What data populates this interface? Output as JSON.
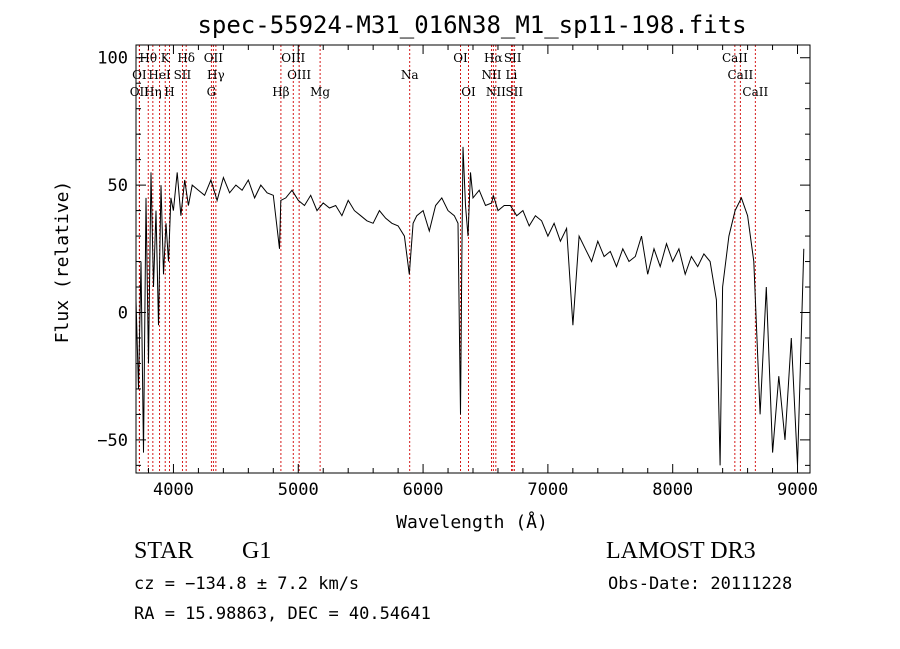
{
  "chart_data": {
    "type": "line",
    "title": "spec-55924-M31_016N38_M1_sp11-198.fits",
    "xlabel": "Wavelength (Å)",
    "ylabel": "Flux (relative)",
    "xlim": [
      3700,
      9100
    ],
    "ylim": [
      -63,
      105
    ],
    "xticks": [
      4000,
      5000,
      6000,
      7000,
      8000,
      9000
    ],
    "yticks": [
      -50,
      0,
      50,
      100
    ],
    "series": [
      {
        "name": "spectrum",
        "x": [
          3700,
          3720,
          3740,
          3760,
          3780,
          3800,
          3820,
          3840,
          3860,
          3880,
          3900,
          3920,
          3940,
          3960,
          3980,
          4000,
          4030,
          4060,
          4090,
          4120,
          4150,
          4200,
          4250,
          4300,
          4350,
          4400,
          4450,
          4500,
          4550,
          4600,
          4650,
          4700,
          4750,
          4800,
          4850,
          4860,
          4900,
          4950,
          5000,
          5050,
          5100,
          5150,
          5200,
          5250,
          5300,
          5350,
          5400,
          5450,
          5500,
          5550,
          5600,
          5650,
          5700,
          5750,
          5800,
          5850,
          5890,
          5920,
          5950,
          6000,
          6050,
          6100,
          6150,
          6200,
          6250,
          6280,
          6300,
          6310,
          6320,
          6340,
          6360,
          6380,
          6400,
          6450,
          6500,
          6550,
          6563,
          6600,
          6650,
          6700,
          6750,
          6800,
          6850,
          6900,
          6950,
          7000,
          7050,
          7100,
          7150,
          7200,
          7250,
          7300,
          7350,
          7400,
          7450,
          7500,
          7550,
          7600,
          7650,
          7700,
          7750,
          7800,
          7850,
          7900,
          7950,
          8000,
          8050,
          8100,
          8150,
          8200,
          8250,
          8300,
          8350,
          8380,
          8400,
          8450,
          8500,
          8550,
          8600,
          8650,
          8700,
          8750,
          8800,
          8850,
          8900,
          8950,
          9000,
          9050
        ],
        "y": [
          5,
          -30,
          20,
          -55,
          45,
          -20,
          55,
          10,
          40,
          -5,
          50,
          15,
          35,
          20,
          45,
          40,
          55,
          38,
          52,
          42,
          50,
          48,
          46,
          52,
          44,
          53,
          47,
          50,
          48,
          52,
          45,
          50,
          47,
          46,
          25,
          44,
          45,
          48,
          44,
          42,
          46,
          40,
          43,
          41,
          42,
          38,
          44,
          40,
          38,
          36,
          35,
          40,
          37,
          35,
          34,
          30,
          15,
          35,
          38,
          40,
          32,
          42,
          45,
          40,
          38,
          35,
          -40,
          20,
          65,
          42,
          30,
          55,
          45,
          48,
          42,
          43,
          46,
          40,
          42,
          42,
          38,
          40,
          34,
          38,
          36,
          30,
          35,
          28,
          33,
          -5,
          30,
          25,
          20,
          28,
          22,
          24,
          18,
          25,
          20,
          22,
          30,
          15,
          25,
          18,
          27,
          20,
          25,
          15,
          22,
          18,
          23,
          20,
          5,
          -60,
          10,
          30,
          40,
          45,
          38,
          20,
          -40,
          10,
          -55,
          -25,
          -50,
          -10,
          -60,
          25
        ]
      }
    ],
    "lines": [
      {
        "label": "Hθ",
        "x": 3798,
        "row": 0
      },
      {
        "label": "K",
        "x": 3934,
        "row": 0
      },
      {
        "label": "Hδ",
        "x": 4102,
        "row": 0
      },
      {
        "label": "OII",
        "x": 4320,
        "row": 0
      },
      {
        "label": "OIII",
        "x": 4960,
        "row": 0
      },
      {
        "label": "OI",
        "x": 6300,
        "row": 0
      },
      {
        "label": "Hα",
        "x": 6563,
        "row": 0
      },
      {
        "label": "SII",
        "x": 6718,
        "row": 0
      },
      {
        "label": "CaII",
        "x": 8498,
        "row": 0
      },
      {
        "label": "OI",
        "x": 3727,
        "row": 1
      },
      {
        "label": "HeI",
        "x": 3889,
        "row": 1
      },
      {
        "label": "SII",
        "x": 4072,
        "row": 1
      },
      {
        "label": "Hγ",
        "x": 4340,
        "row": 1
      },
      {
        "label": "OIII",
        "x": 5007,
        "row": 1
      },
      {
        "label": "Na",
        "x": 5893,
        "row": 1
      },
      {
        "label": "NII",
        "x": 6548,
        "row": 1
      },
      {
        "label": "Li",
        "x": 6708,
        "row": 1
      },
      {
        "label": "CaII",
        "x": 8542,
        "row": 1
      },
      {
        "label": "OII",
        "x": 3727,
        "row": 2
      },
      {
        "label": "Hη",
        "x": 3835,
        "row": 2
      },
      {
        "label": "H",
        "x": 3968,
        "row": 2
      },
      {
        "label": "G",
        "x": 4304,
        "row": 2
      },
      {
        "label": "Hβ",
        "x": 4861,
        "row": 2
      },
      {
        "label": "Mg",
        "x": 5175,
        "row": 2
      },
      {
        "label": "OI",
        "x": 6364,
        "row": 2
      },
      {
        "label": "NII",
        "x": 6583,
        "row": 2
      },
      {
        "label": "SII",
        "x": 6731,
        "row": 2
      },
      {
        "label": "CaII",
        "x": 8662,
        "row": 2
      }
    ]
  },
  "info": {
    "object_class": "STAR",
    "subclass": "G1",
    "survey": "LAMOST DR3",
    "redshift": "cz = −134.8 ± 7.2 km/s",
    "obs_date": "Obs-Date: 20111228",
    "coords": "RA =  15.98863, DEC =  40.54641"
  }
}
